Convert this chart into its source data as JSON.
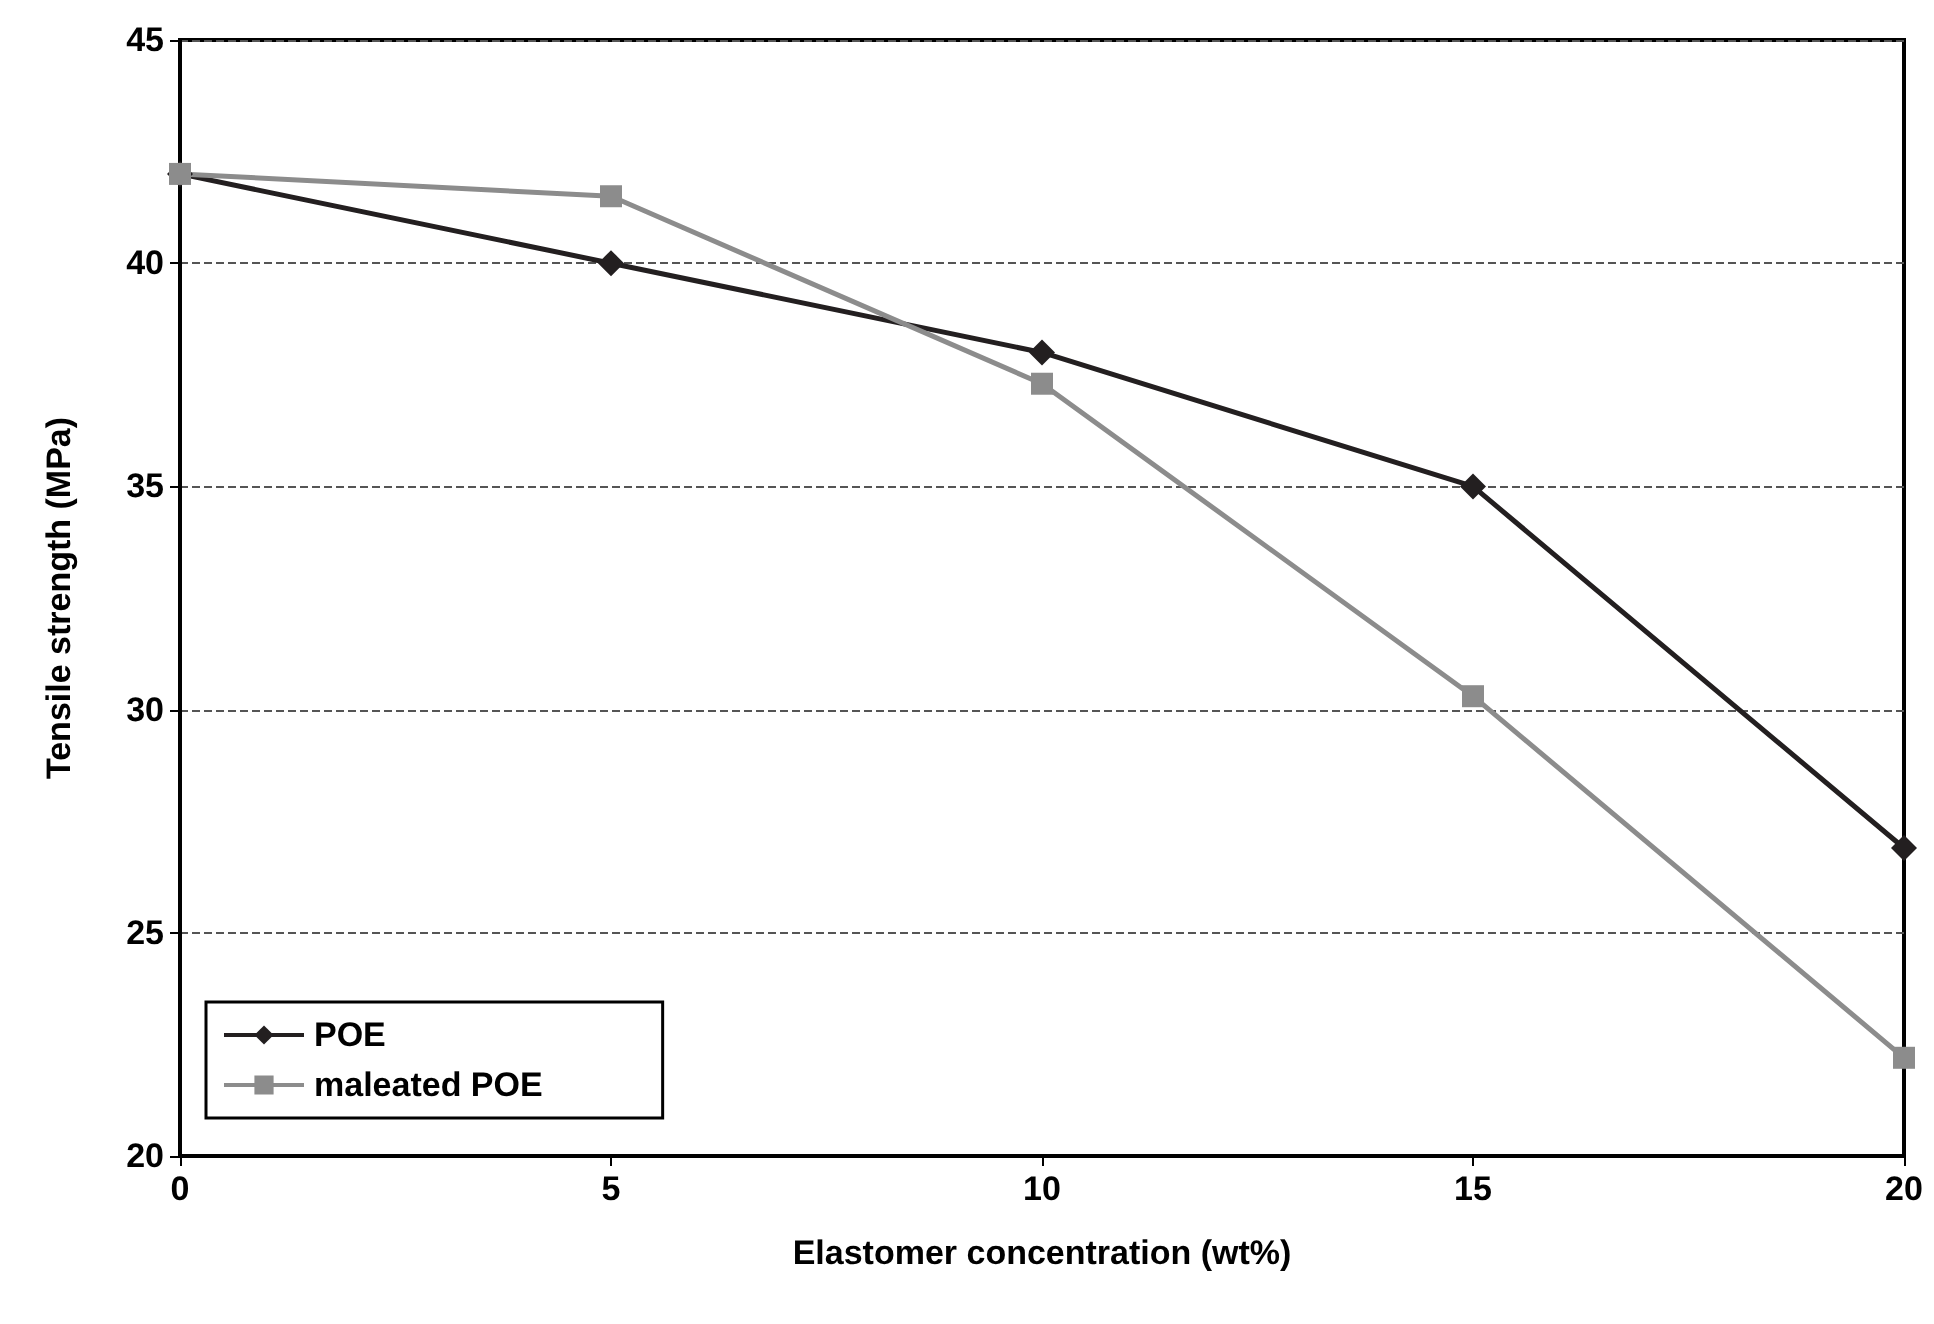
{
  "chart_data": {
    "type": "line",
    "xlabel": "Elastomer concentration (wt%)",
    "ylabel": "Tensile strength (MPa)",
    "x": [
      0,
      5,
      10,
      15,
      20
    ],
    "series": [
      {
        "name": "POE",
        "color": "#231f20",
        "values": [
          42,
          40,
          38,
          35,
          26.9
        ],
        "marker": "diamond"
      },
      {
        "name": "maleated POE",
        "color": "#8c8c8c",
        "values": [
          42,
          41.5,
          37.3,
          30.3,
          22.2
        ],
        "marker": "square"
      }
    ],
    "xlim": [
      0,
      20
    ],
    "xticks": [
      0,
      5,
      10,
      15,
      20
    ],
    "ylim": [
      20,
      45
    ],
    "yticks": [
      20,
      25,
      30,
      35,
      40,
      45
    ],
    "grid": "y",
    "legend": "bottom left",
    "line_style": "solid"
  }
}
